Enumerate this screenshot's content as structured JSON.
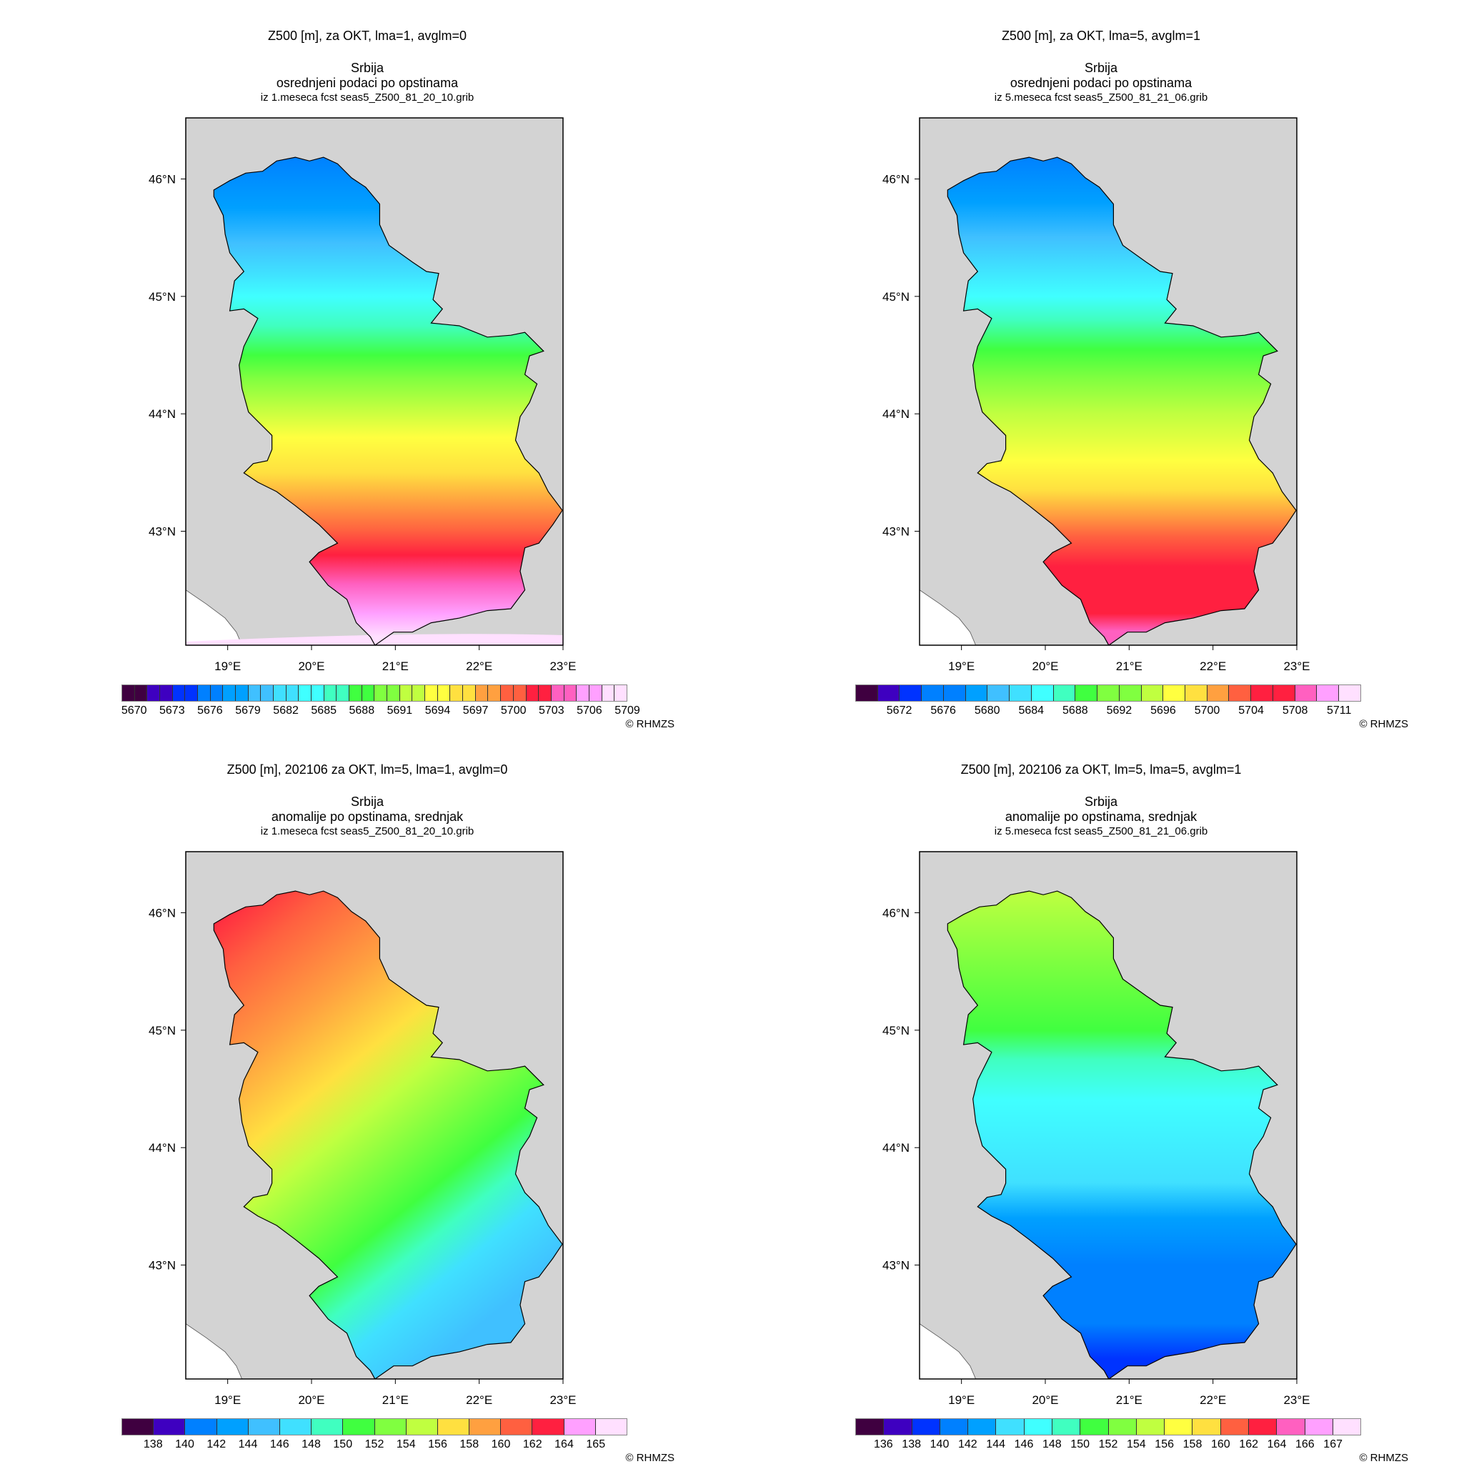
{
  "copyright": "© RHMZS",
  "panels": [
    {
      "title": "Z500 [m], za OKT, lma=1, avglm=0",
      "region": "Srbija",
      "subtitle": "osrednjeni podaci po opstinama",
      "source": "iz 1.meseca fcst seas5_Z500_81_20_10.grib",
      "gradient": "lat",
      "bands": [
        {
          "lat": 46.2,
          "color": "#0080ff"
        },
        {
          "lat": 45.75,
          "color": "#00a0ff"
        },
        {
          "lat": 45.45,
          "color": "#40c0ff"
        },
        {
          "lat": 45.2,
          "color": "#40e0ff"
        },
        {
          "lat": 45.0,
          "color": "#40ffff"
        },
        {
          "lat": 44.75,
          "color": "#40ffc0"
        },
        {
          "lat": 44.5,
          "color": "#40ff40"
        },
        {
          "lat": 44.3,
          "color": "#80ff40"
        },
        {
          "lat": 44.05,
          "color": "#c0ff40"
        },
        {
          "lat": 43.8,
          "color": "#ffff40"
        },
        {
          "lat": 43.5,
          "color": "#ffe040"
        },
        {
          "lat": 43.25,
          "color": "#ffa040"
        },
        {
          "lat": 43.0,
          "color": "#ff6040"
        },
        {
          "lat": 42.8,
          "color": "#ff2040"
        },
        {
          "lat": 42.55,
          "color": "#ff60c0"
        },
        {
          "lat": 42.3,
          "color": "#ffa0ff"
        },
        {
          "lat": 42.1,
          "color": "#ffe0ff"
        }
      ],
      "colorbar": {
        "colors": [
          "#3f0040",
          "#3f0040",
          "#3e00c0",
          "#3e00c0",
          "#0033ff",
          "#0033ff",
          "#0080ff",
          "#0080ff",
          "#00a0ff",
          "#00a0ff",
          "#40c0ff",
          "#40c0ff",
          "#40e0ff",
          "#40e0ff",
          "#40ffff",
          "#40ffff",
          "#40ffc0",
          "#40ffc0",
          "#40ff40",
          "#40ff40",
          "#80ff40",
          "#80ff40",
          "#c0ff40",
          "#c0ff40",
          "#ffff40",
          "#ffff40",
          "#ffe040",
          "#ffe040",
          "#ffa040",
          "#ffa040",
          "#ff6040",
          "#ff6040",
          "#ff2040",
          "#ff2040",
          "#ff60c0",
          "#ff60c0",
          "#ffa0ff",
          "#ffa0ff",
          "#ffe0ff",
          "#ffe0ff"
        ],
        "labels": [
          "5670",
          "5673",
          "5676",
          "5679",
          "5682",
          "5685",
          "5688",
          "5691",
          "5694",
          "5697",
          "5700",
          "5703",
          "5706",
          "5709"
        ],
        "first_boundary": 1,
        "step": 3
      }
    },
    {
      "title": "Z500 [m], za OKT, lma=5, avglm=1",
      "region": "Srbija",
      "subtitle": "osrednjeni podaci po opstinama",
      "source": "iz 5.meseca fcst seas5_Z500_81_21_06.grib",
      "gradient": "lat",
      "bands": [
        {
          "lat": 46.2,
          "color": "#0080ff"
        },
        {
          "lat": 45.8,
          "color": "#00a0ff"
        },
        {
          "lat": 45.5,
          "color": "#40c0ff"
        },
        {
          "lat": 45.25,
          "color": "#40e0ff"
        },
        {
          "lat": 45.0,
          "color": "#40ffff"
        },
        {
          "lat": 44.8,
          "color": "#40ffc0"
        },
        {
          "lat": 44.55,
          "color": "#40ff40"
        },
        {
          "lat": 44.3,
          "color": "#80ff40"
        },
        {
          "lat": 44.0,
          "color": "#c0ff40"
        },
        {
          "lat": 43.6,
          "color": "#ffff40"
        },
        {
          "lat": 43.35,
          "color": "#ffe040"
        },
        {
          "lat": 43.15,
          "color": "#ffa040"
        },
        {
          "lat": 42.95,
          "color": "#ff6040"
        },
        {
          "lat": 42.7,
          "color": "#ff2040"
        },
        {
          "lat": 42.3,
          "color": "#ff2040"
        },
        {
          "lat": 42.15,
          "color": "#ff60c0"
        }
      ],
      "colorbar": {
        "colors": [
          "#3f0040",
          "#3e00c0",
          "#0033ff",
          "#0080ff",
          "#0080ff",
          "#00a0ff",
          "#40c0ff",
          "#40e0ff",
          "#40ffff",
          "#40ffc0",
          "#40ff40",
          "#80ff40",
          "#80ff40",
          "#c0ff40",
          "#ffff40",
          "#ffe040",
          "#ffa040",
          "#ff6040",
          "#ff2040",
          "#ff2040",
          "#ff60c0",
          "#ffa0ff",
          "#ffe0ff"
        ],
        "labels": [
          "5672",
          "5676",
          "5680",
          "5684",
          "5688",
          "5692",
          "5696",
          "5700",
          "5704",
          "5708",
          "5711"
        ],
        "first_boundary": 2,
        "step": 2
      }
    },
    {
      "title": "Z500 [m], 202106 za OKT, lm=5, lma=1, avglm=0",
      "region": "Srbija",
      "subtitle": "anomalije po opstinama, srednjak",
      "source": "iz 1.meseca fcst seas5_Z500_81_20_10.grib",
      "gradient": "diag",
      "bands": [
        {
          "lat": 0.0,
          "color": "#ff2040"
        },
        {
          "lat": 0.12,
          "color": "#ff6040"
        },
        {
          "lat": 0.28,
          "color": "#ffa040"
        },
        {
          "lat": 0.42,
          "color": "#ffe040"
        },
        {
          "lat": 0.52,
          "color": "#c0ff40"
        },
        {
          "lat": 0.62,
          "color": "#80ff40"
        },
        {
          "lat": 0.72,
          "color": "#40ff40"
        },
        {
          "lat": 0.8,
          "color": "#40ffc0"
        },
        {
          "lat": 0.88,
          "color": "#40e0ff"
        },
        {
          "lat": 1.0,
          "color": "#40c0ff"
        }
      ],
      "colorbar": {
        "colors": [
          "#3f0040",
          "#3e00c0",
          "#0080ff",
          "#00a0ff",
          "#40c0ff",
          "#40e0ff",
          "#40ffc0",
          "#40ff40",
          "#80ff40",
          "#c0ff40",
          "#ffe040",
          "#ffa040",
          "#ff6040",
          "#ff2040",
          "#ffa0ff",
          "#ffe0ff"
        ],
        "labels": [
          "138",
          "140",
          "142",
          "144",
          "146",
          "148",
          "150",
          "152",
          "154",
          "156",
          "158",
          "160",
          "162",
          "164",
          "165"
        ],
        "first_boundary": 1,
        "step": 1
      }
    },
    {
      "title": "Z500 [m], 202106 za OKT, lm=5, lma=5, avglm=1",
      "region": "Srbija",
      "subtitle": "anomalije po opstinama, srednjak",
      "source": "iz 5.meseca fcst seas5_Z500_81_21_06.grib",
      "gradient": "lat",
      "bands": [
        {
          "lat": 46.2,
          "color": "#c0ff40"
        },
        {
          "lat": 45.6,
          "color": "#80ff40"
        },
        {
          "lat": 45.0,
          "color": "#40ff40"
        },
        {
          "lat": 44.75,
          "color": "#40ffc0"
        },
        {
          "lat": 44.4,
          "color": "#40ffff"
        },
        {
          "lat": 43.7,
          "color": "#40e0ff"
        },
        {
          "lat": 43.4,
          "color": "#00a0ff"
        },
        {
          "lat": 43.0,
          "color": "#0080ff"
        },
        {
          "lat": 42.5,
          "color": "#0080ff"
        },
        {
          "lat": 42.2,
          "color": "#0033ff"
        }
      ],
      "colorbar": {
        "colors": [
          "#3f0040",
          "#3e00c0",
          "#0033ff",
          "#0080ff",
          "#00a0ff",
          "#40e0ff",
          "#40ffff",
          "#40ffc0",
          "#40ff40",
          "#80ff40",
          "#c0ff40",
          "#ffff40",
          "#ffe040",
          "#ff6040",
          "#ff2040",
          "#ff60c0",
          "#ffa0ff",
          "#ffe0ff"
        ],
        "labels": [
          "136",
          "138",
          "140",
          "142",
          "144",
          "146",
          "148",
          "150",
          "152",
          "154",
          "156",
          "158",
          "160",
          "162",
          "164",
          "166",
          "167"
        ],
        "first_boundary": 1,
        "step": 1
      }
    }
  ],
  "chart_data": {
    "type": "heatmap",
    "axes": {
      "lon_ticks": [
        "19°E",
        "20°E",
        "21°E",
        "22°E",
        "23°E"
      ],
      "lat_ticks": [
        "46°N",
        "45°N",
        "44°N",
        "43°N"
      ],
      "xlim": [
        18.5,
        23.0
      ],
      "ylim": [
        42.03,
        46.52
      ]
    },
    "colors": {
      "background": "#d3d3d3",
      "outside": "#ffffff"
    }
  }
}
